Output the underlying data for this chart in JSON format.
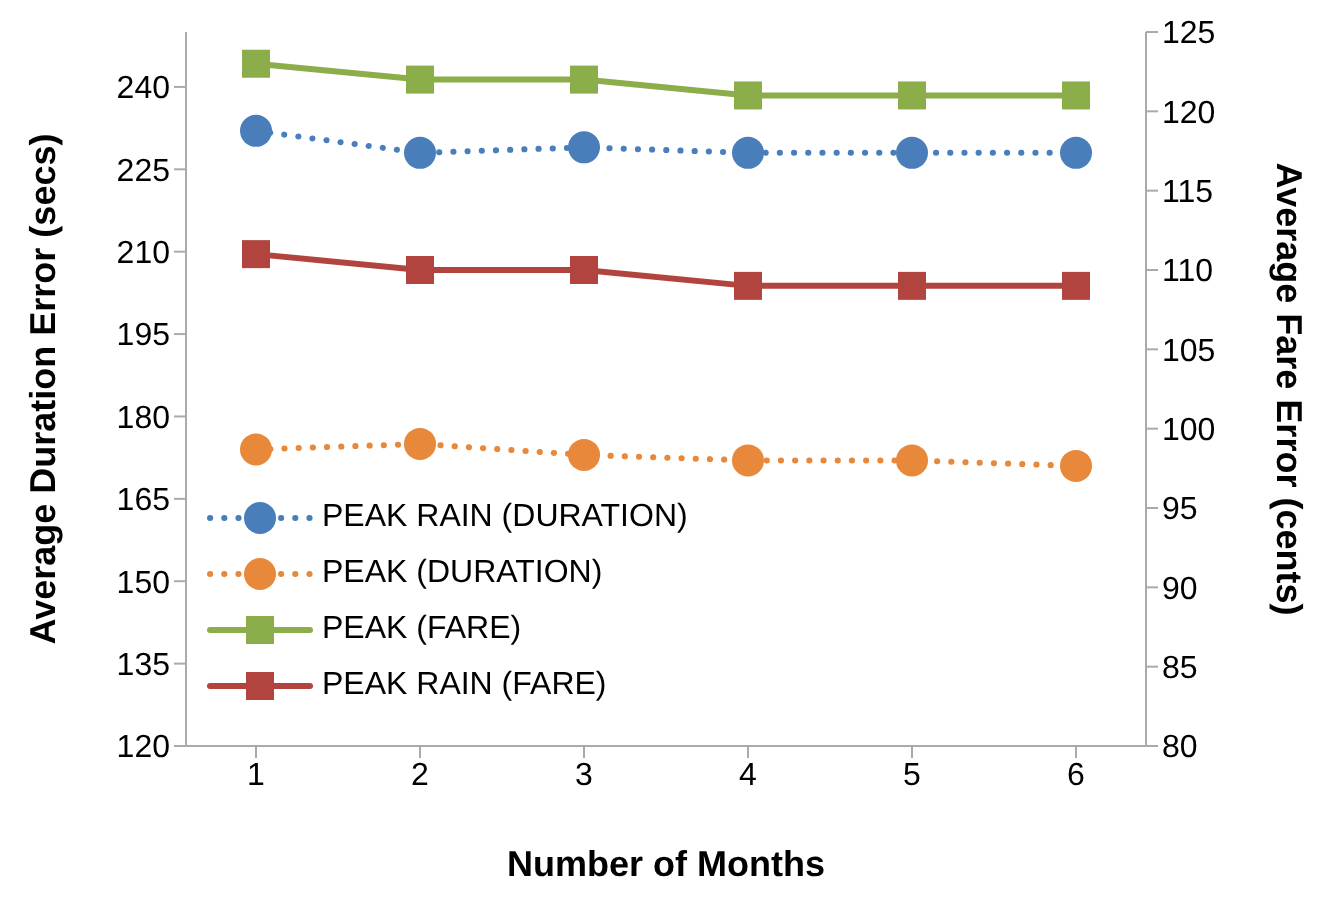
{
  "chart_data": {
    "type": "line",
    "xlabel": "Number of Months",
    "ylabel": "Average Duration Error (secs)",
    "y2label": "Average Fare Error (cents)",
    "categories": [
      "1",
      "2",
      "3",
      "4",
      "5",
      "6"
    ],
    "series": [
      {
        "name": "PEAK RAIN (DURATION)",
        "color": "#4a7ebb",
        "values": [
          232,
          228,
          229,
          228,
          228,
          228
        ],
        "marker": "circle",
        "line_style": "dotted"
      },
      {
        "name": "PEAK (DURATION)",
        "color": "#e8883a",
        "values": [
          174,
          175,
          173,
          172,
          172,
          171
        ],
        "marker": "circle",
        "line_style": "dotted"
      },
      {
        "name": "PEAK (FARE)",
        "color": "#8cae4a",
        "values": [
          123,
          122,
          122,
          121,
          121,
          121
        ],
        "marker": "square",
        "line_style": "solid",
        "axis": "y2"
      },
      {
        "name": "PEAK RAIN (FARE)",
        "color": "#b2443f",
        "values": [
          111,
          110,
          110,
          109,
          109,
          109
        ],
        "marker": "square",
        "line_style": "solid",
        "axis": "y2"
      }
    ],
    "ylim": [
      120,
      250
    ],
    "yticks": [
      120,
      135,
      150,
      165,
      180,
      195,
      210,
      225,
      240
    ],
    "y2lim": [
      80,
      125
    ],
    "y2ticks": [
      80,
      85,
      90,
      95,
      100,
      105,
      110,
      115,
      120,
      125
    ],
    "legend": "bottom left",
    "grid": false
  }
}
